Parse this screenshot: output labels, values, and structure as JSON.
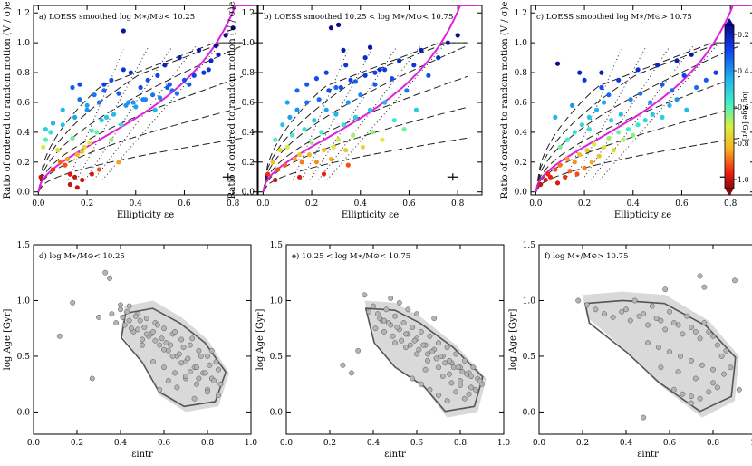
{
  "chart_data": [
    {
      "type": "scatter",
      "panel_label": "a) LOESS smoothed  log M∗/M⊙< 10.25",
      "xlabel": "Ellipticity εe",
      "ylabel": "Ratio of ordered to random motion (V / σ)e",
      "xlim": [
        -0.02,
        0.9
      ],
      "ylim": [
        -0.02,
        1.25
      ],
      "xticks": [
        "0.0",
        "0.2",
        "0.4",
        "0.6",
        "0.8"
      ],
      "yticks": [
        "0.0",
        "0.2",
        "0.4",
        "0.6",
        "0.8",
        "1.0",
        "1.2"
      ],
      "x": [
        0.01,
        0.02,
        0.03,
        0.03,
        0.05,
        0.06,
        0.08,
        0.1,
        0.12,
        0.14,
        0.15,
        0.17,
        0.18,
        0.2,
        0.22,
        0.25,
        0.27,
        0.3,
        0.33,
        0.36,
        0.38,
        0.42,
        0.45,
        0.48,
        0.52,
        0.55,
        0.58,
        0.62,
        0.66,
        0.7,
        0.73,
        0.77,
        0.8,
        0.06,
        0.09,
        0.11,
        0.13,
        0.16,
        0.19,
        0.21,
        0.24,
        0.26,
        0.28,
        0.31,
        0.34,
        0.37,
        0.4,
        0.43,
        0.47,
        0.5,
        0.53,
        0.57,
        0.6,
        0.64,
        0.68,
        0.71,
        0.74,
        0.1,
        0.14,
        0.17,
        0.2,
        0.23,
        0.27,
        0.3,
        0.35,
        0.39,
        0.44,
        0.49,
        0.54,
        0.15,
        0.18,
        0.22,
        0.13,
        0.16,
        0.25,
        0.33,
        0.35
      ],
      "y": [
        0.1,
        0.3,
        0.35,
        0.42,
        0.4,
        0.46,
        0.28,
        0.45,
        0.22,
        0.36,
        0.5,
        0.62,
        0.27,
        0.55,
        0.41,
        0.6,
        0.72,
        0.35,
        0.66,
        0.58,
        0.8,
        0.7,
        0.75,
        0.55,
        0.85,
        0.68,
        0.9,
        0.72,
        0.95,
        0.82,
        0.98,
        1.05,
        1.1,
        0.15,
        0.2,
        0.18,
        0.12,
        0.25,
        0.3,
        0.33,
        0.4,
        0.48,
        0.5,
        0.52,
        0.45,
        0.6,
        0.57,
        0.62,
        0.65,
        0.63,
        0.7,
        0.66,
        0.75,
        0.78,
        0.8,
        0.88,
        0.92,
        0.55,
        0.7,
        0.72,
        0.58,
        0.65,
        0.68,
        0.75,
        0.82,
        0.6,
        0.62,
        0.78,
        0.72,
        0.1,
        0.08,
        0.12,
        0.05,
        0.03,
        0.15,
        0.2,
        1.08
      ],
      "age": [
        1.0,
        0.7,
        0.6,
        0.5,
        0.55,
        0.45,
        0.75,
        0.48,
        0.85,
        0.62,
        0.42,
        0.35,
        0.78,
        0.4,
        0.58,
        0.36,
        0.28,
        0.65,
        0.32,
        0.4,
        0.25,
        0.3,
        0.3,
        0.45,
        0.22,
        0.35,
        0.2,
        0.32,
        0.18,
        0.26,
        0.16,
        0.15,
        0.15,
        0.95,
        0.9,
        0.92,
        0.98,
        0.82,
        0.75,
        0.72,
        0.62,
        0.5,
        0.48,
        0.46,
        0.55,
        0.4,
        0.42,
        0.38,
        0.36,
        0.38,
        0.32,
        0.35,
        0.3,
        0.28,
        0.26,
        0.22,
        0.2,
        0.45,
        0.32,
        0.3,
        0.42,
        0.36,
        0.34,
        0.3,
        0.25,
        0.4,
        0.38,
        0.28,
        0.32,
        1.0,
        1.0,
        0.98,
        1.0,
        1.0,
        0.92,
        0.85,
        0.18
      ],
      "errorbar_label": ""
    },
    {
      "type": "scatter",
      "panel_label": "b) LOESS smoothed  10.25 < log M∗/M⊙< 10.75",
      "xlabel": "Ellipticity εe",
      "ylabel": "Ratio of ordered to random motion (V / σ)e",
      "xlim": [
        -0.02,
        0.9
      ],
      "ylim": [
        -0.02,
        1.25
      ],
      "xticks": [
        "0.0",
        "0.2",
        "0.4",
        "0.6",
        "0.8"
      ],
      "yticks": [
        "0.0",
        "0.2",
        "0.4",
        "0.6",
        "0.8",
        "1.0",
        "1.2"
      ],
      "x": [
        0.02,
        0.04,
        0.05,
        0.07,
        0.08,
        0.1,
        0.11,
        0.12,
        0.14,
        0.15,
        0.17,
        0.18,
        0.2,
        0.21,
        0.23,
        0.24,
        0.26,
        0.27,
        0.29,
        0.3,
        0.32,
        0.33,
        0.35,
        0.36,
        0.38,
        0.4,
        0.42,
        0.44,
        0.46,
        0.48,
        0.5,
        0.53,
        0.56,
        0.59,
        0.62,
        0.65,
        0.68,
        0.72,
        0.76,
        0.8,
        0.06,
        0.09,
        0.13,
        0.16,
        0.19,
        0.22,
        0.25,
        0.28,
        0.31,
        0.34,
        0.37,
        0.41,
        0.45,
        0.49,
        0.54,
        0.58,
        0.63,
        0.1,
        0.14,
        0.18,
        0.22,
        0.26,
        0.3,
        0.34,
        0.38,
        0.42,
        0.46,
        0.5,
        0.28,
        0.31,
        0.33,
        0.44,
        0.05,
        0.15,
        0.25,
        0.35
      ],
      "y": [
        0.12,
        0.2,
        0.35,
        0.28,
        0.45,
        0.3,
        0.5,
        0.38,
        0.55,
        0.25,
        0.42,
        0.6,
        0.33,
        0.48,
        0.62,
        0.4,
        0.55,
        0.68,
        0.3,
        0.52,
        0.7,
        0.45,
        0.6,
        0.75,
        0.5,
        0.65,
        0.78,
        0.55,
        0.72,
        0.82,
        0.6,
        0.76,
        0.88,
        0.68,
        0.85,
        0.95,
        0.78,
        0.9,
        1.0,
        1.05,
        0.15,
        0.18,
        0.22,
        0.2,
        0.25,
        0.2,
        0.28,
        0.22,
        0.35,
        0.28,
        0.38,
        0.3,
        0.4,
        0.35,
        0.48,
        0.42,
        0.55,
        0.6,
        0.68,
        0.72,
        0.76,
        0.8,
        0.7,
        0.85,
        0.74,
        0.9,
        0.8,
        0.82,
        1.1,
        1.12,
        0.95,
        0.97,
        0.08,
        0.1,
        0.12,
        0.18
      ],
      "age": [
        0.95,
        0.8,
        0.6,
        0.75,
        0.48,
        0.7,
        0.42,
        0.58,
        0.4,
        0.78,
        0.55,
        0.35,
        0.65,
        0.48,
        0.34,
        0.58,
        0.42,
        0.3,
        0.72,
        0.45,
        0.3,
        0.55,
        0.4,
        0.28,
        0.5,
        0.38,
        0.26,
        0.48,
        0.32,
        0.24,
        0.45,
        0.3,
        0.22,
        0.36,
        0.26,
        0.2,
        0.3,
        0.24,
        0.18,
        0.15,
        0.92,
        0.9,
        0.85,
        0.88,
        0.82,
        0.86,
        0.8,
        0.84,
        0.7,
        0.78,
        0.66,
        0.76,
        0.64,
        0.72,
        0.56,
        0.62,
        0.5,
        0.42,
        0.34,
        0.32,
        0.3,
        0.28,
        0.34,
        0.26,
        0.32,
        0.24,
        0.28,
        0.27,
        0.12,
        0.12,
        0.2,
        0.18,
        1.0,
        0.98,
        0.96,
        0.92
      ],
      "errorbar_label": ""
    },
    {
      "type": "scatter",
      "panel_label": "c) LOESS smoothed  log M∗/M⊙> 10.75",
      "xlabel": "Ellipticity εe",
      "ylabel": "Ratio of ordered to random motion (V / σ)e",
      "xlim": [
        -0.02,
        0.9
      ],
      "ylim": [
        -0.02,
        1.25
      ],
      "xticks": [
        "0.0",
        "0.2",
        "0.4",
        "0.6",
        "0.8"
      ],
      "yticks": [
        "0.0",
        "0.2",
        "0.4",
        "0.6",
        "0.8",
        "1.0",
        "1.2"
      ],
      "x": [
        0.02,
        0.04,
        0.05,
        0.06,
        0.08,
        0.09,
        0.1,
        0.12,
        0.13,
        0.14,
        0.16,
        0.17,
        0.18,
        0.2,
        0.21,
        0.23,
        0.24,
        0.26,
        0.28,
        0.3,
        0.32,
        0.34,
        0.36,
        0.38,
        0.4,
        0.42,
        0.45,
        0.48,
        0.52,
        0.55,
        0.58,
        0.62,
        0.66,
        0.7,
        0.74,
        0.1,
        0.13,
        0.16,
        0.19,
        0.22,
        0.25,
        0.28,
        0.31,
        0.35,
        0.39,
        0.43,
        0.47,
        0.52,
        0.56,
        0.61,
        0.08,
        0.15,
        0.22,
        0.27,
        0.3,
        0.34,
        0.42,
        0.5,
        0.58,
        0.64,
        0.09,
        0.18,
        0.2,
        0.27
      ],
      "y": [
        0.05,
        0.08,
        0.12,
        0.1,
        0.15,
        0.06,
        0.18,
        0.1,
        0.22,
        0.14,
        0.2,
        0.12,
        0.25,
        0.16,
        0.28,
        0.2,
        0.32,
        0.24,
        0.3,
        0.36,
        0.28,
        0.4,
        0.35,
        0.42,
        0.38,
        0.45,
        0.48,
        0.52,
        0.5,
        0.58,
        0.62,
        0.55,
        0.7,
        0.75,
        0.8,
        0.3,
        0.35,
        0.4,
        0.45,
        0.5,
        0.55,
        0.6,
        0.48,
        0.52,
        0.62,
        0.66,
        0.6,
        0.72,
        0.68,
        0.78,
        0.5,
        0.58,
        0.42,
        0.7,
        0.65,
        0.75,
        0.82,
        0.85,
        0.88,
        0.92,
        0.86,
        0.8,
        0.75,
        0.8
      ],
      "age": [
        1.0,
        0.98,
        0.95,
        0.96,
        0.92,
        0.98,
        0.88,
        0.95,
        0.85,
        0.9,
        0.86,
        0.92,
        0.8,
        0.88,
        0.78,
        0.84,
        0.72,
        0.8,
        0.74,
        0.66,
        0.76,
        0.62,
        0.68,
        0.58,
        0.64,
        0.56,
        0.52,
        0.48,
        0.5,
        0.44,
        0.4,
        0.46,
        0.35,
        0.32,
        0.28,
        0.62,
        0.58,
        0.55,
        0.52,
        0.48,
        0.45,
        0.42,
        0.5,
        0.46,
        0.38,
        0.36,
        0.4,
        0.32,
        0.35,
        0.28,
        0.45,
        0.4,
        0.55,
        0.3,
        0.34,
        0.26,
        0.24,
        0.22,
        0.2,
        0.18,
        0.1,
        0.22,
        0.26,
        0.2
      ],
      "errorbar_label": ""
    },
    {
      "type": "scatter",
      "panel_label": "d)  log M∗/M⊙< 10.25",
      "xlabel": "εintr",
      "ylabel": "log Age [Gyr]",
      "xlim": [
        0.0,
        1.0
      ],
      "ylim": [
        -0.2,
        1.5
      ],
      "xticks": [
        "0.0",
        "0.2",
        "0.4",
        "0.6",
        "0.8",
        "1.0"
      ],
      "yticks": [
        "0.0",
        "0.5",
        "1.0",
        "1.5"
      ],
      "x": [
        0.33,
        0.35,
        0.3,
        0.18,
        0.12,
        0.27,
        0.4,
        0.42,
        0.44,
        0.46,
        0.48,
        0.5,
        0.52,
        0.54,
        0.56,
        0.58,
        0.6,
        0.62,
        0.64,
        0.66,
        0.68,
        0.7,
        0.72,
        0.74,
        0.76,
        0.78,
        0.8,
        0.82,
        0.84,
        0.86,
        0.38,
        0.41,
        0.45,
        0.49,
        0.53,
        0.57,
        0.61,
        0.65,
        0.69,
        0.73,
        0.77,
        0.81,
        0.85,
        0.43,
        0.47,
        0.51,
        0.55,
        0.59,
        0.63,
        0.67,
        0.71,
        0.75,
        0.79,
        0.83,
        0.36,
        0.4,
        0.44,
        0.48,
        0.52,
        0.56,
        0.6,
        0.64,
        0.68,
        0.72,
        0.76,
        0.8,
        0.55,
        0.6,
        0.65,
        0.7,
        0.75,
        0.8,
        0.85,
        0.58,
        0.66,
        0.74,
        0.82,
        0.5,
        0.62,
        0.7
      ],
      "y": [
        1.25,
        1.2,
        0.85,
        0.98,
        0.68,
        0.3,
        0.92,
        0.78,
        0.95,
        0.72,
        0.88,
        0.65,
        0.84,
        0.7,
        0.8,
        0.6,
        0.75,
        0.55,
        0.7,
        0.5,
        0.65,
        0.45,
        0.6,
        0.4,
        0.55,
        0.35,
        0.5,
        0.3,
        0.45,
        0.25,
        0.8,
        0.85,
        0.75,
        0.82,
        0.68,
        0.78,
        0.62,
        0.72,
        0.58,
        0.66,
        0.5,
        0.42,
        0.38,
        0.9,
        0.86,
        0.76,
        0.72,
        0.66,
        0.6,
        0.52,
        0.48,
        0.4,
        0.35,
        0.28,
        0.88,
        0.96,
        0.82,
        0.74,
        0.7,
        0.64,
        0.56,
        0.5,
        0.44,
        0.36,
        0.3,
        0.2,
        0.45,
        0.4,
        0.35,
        0.3,
        0.25,
        0.18,
        0.15,
        0.2,
        0.22,
        0.12,
        0.55,
        0.6,
        0.28,
        0.32
      ],
      "contour_label": ""
    },
    {
      "type": "scatter",
      "panel_label": "e)  10.25 < log M∗/M⊙< 10.75",
      "xlabel": "εintr",
      "ylabel": "log Age [Gyr]",
      "xlim": [
        0.0,
        1.0
      ],
      "ylim": [
        -0.2,
        1.5
      ],
      "xticks": [
        "0.0",
        "0.2",
        "0.4",
        "0.6",
        "0.8",
        "1.0"
      ],
      "yticks": [
        "0.0",
        "0.5",
        "1.0",
        "1.5"
      ],
      "x": [
        0.4,
        0.42,
        0.44,
        0.46,
        0.48,
        0.5,
        0.52,
        0.54,
        0.56,
        0.58,
        0.6,
        0.62,
        0.64,
        0.66,
        0.68,
        0.7,
        0.72,
        0.74,
        0.76,
        0.78,
        0.8,
        0.82,
        0.84,
        0.86,
        0.88,
        0.9,
        0.45,
        0.49,
        0.53,
        0.57,
        0.61,
        0.65,
        0.69,
        0.73,
        0.77,
        0.81,
        0.85,
        0.89,
        0.43,
        0.47,
        0.51,
        0.55,
        0.59,
        0.63,
        0.67,
        0.71,
        0.75,
        0.79,
        0.83,
        0.87,
        0.38,
        0.36,
        0.26,
        0.3,
        0.33,
        0.41,
        0.45,
        0.5,
        0.55,
        0.6,
        0.65,
        0.7,
        0.75,
        0.8,
        0.85,
        0.58,
        0.62,
        0.66,
        0.7,
        0.74,
        0.78,
        0.82,
        0.64,
        0.72,
        0.8,
        0.48,
        0.52,
        0.56,
        0.6,
        0.68,
        0.76,
        0.84
      ],
      "y": [
        0.95,
        0.88,
        0.82,
        0.92,
        0.78,
        0.86,
        0.74,
        0.8,
        0.7,
        0.76,
        0.66,
        0.72,
        0.6,
        0.68,
        0.56,
        0.62,
        0.5,
        0.58,
        0.44,
        0.52,
        0.4,
        0.46,
        0.35,
        0.4,
        0.3,
        0.25,
        0.72,
        0.68,
        0.64,
        0.6,
        0.56,
        0.52,
        0.48,
        0.44,
        0.4,
        0.36,
        0.32,
        0.28,
        0.84,
        0.8,
        0.76,
        0.7,
        0.64,
        0.6,
        0.54,
        0.5,
        0.46,
        0.4,
        0.34,
        0.2,
        0.9,
        1.05,
        0.42,
        0.35,
        0.55,
        0.75,
        0.82,
        0.62,
        0.58,
        0.52,
        0.46,
        0.4,
        0.34,
        0.28,
        0.22,
        0.3,
        0.25,
        0.2,
        0.15,
        0.1,
        0.18,
        0.12,
        0.38,
        0.32,
        0.24,
        1.02,
        0.98,
        0.92,
        0.88,
        0.84,
        0.26,
        0.16
      ],
      "contour_label": ""
    },
    {
      "type": "scatter",
      "panel_label": "f)  log M∗/M⊙> 10.75",
      "xlabel": "εintr",
      "ylabel": "log Age [Gyr]",
      "xlim": [
        0.0,
        1.0
      ],
      "ylim": [
        -0.2,
        1.5
      ],
      "xticks": [
        "0.0",
        "0.2",
        "0.4",
        "0.6",
        "0.8",
        "1.0"
      ],
      "yticks": [
        "0.0",
        "0.5",
        "1.0",
        "1.5"
      ],
      "x": [
        0.18,
        0.22,
        0.26,
        0.3,
        0.34,
        0.38,
        0.42,
        0.46,
        0.5,
        0.54,
        0.58,
        0.62,
        0.66,
        0.7,
        0.74,
        0.78,
        0.82,
        0.86,
        0.4,
        0.44,
        0.48,
        0.52,
        0.56,
        0.6,
        0.64,
        0.68,
        0.72,
        0.76,
        0.8,
        0.84,
        0.5,
        0.55,
        0.6,
        0.65,
        0.7,
        0.75,
        0.8,
        0.85,
        0.62,
        0.66,
        0.7,
        0.74,
        0.78,
        0.82,
        0.56,
        0.64,
        0.72,
        0.8,
        0.88,
        0.92,
        0.9,
        0.48,
        0.58,
        0.74,
        0.76,
        0.7
      ],
      "y": [
        1.0,
        0.96,
        0.92,
        0.88,
        0.85,
        0.9,
        0.82,
        0.86,
        0.78,
        0.84,
        0.74,
        0.8,
        0.7,
        0.76,
        0.66,
        0.72,
        0.6,
        0.55,
        0.92,
        1.0,
        0.88,
        0.95,
        0.82,
        0.9,
        0.78,
        0.86,
        0.72,
        0.8,
        0.68,
        0.5,
        0.62,
        0.58,
        0.54,
        0.5,
        0.46,
        0.42,
        0.38,
        0.34,
        0.2,
        0.16,
        0.14,
        0.12,
        0.18,
        0.22,
        0.4,
        0.36,
        0.3,
        0.26,
        0.4,
        0.2,
        1.18,
        -0.05,
        1.1,
        1.22,
        1.12,
        0.08
      ],
      "contour_label": ""
    }
  ],
  "colorbar": {
    "label": "log Age [Gyr]",
    "ticks": [
      "0.2",
      "0.4",
      "0.6",
      "0.8",
      "1.0"
    ],
    "range": [
      0.15,
      1.05
    ]
  },
  "colors": {
    "magenta_line": "#e020e0",
    "point_gray": "#b4b4b4",
    "contour_fill": "#d9d9d9",
    "contour_line": "#555555"
  }
}
